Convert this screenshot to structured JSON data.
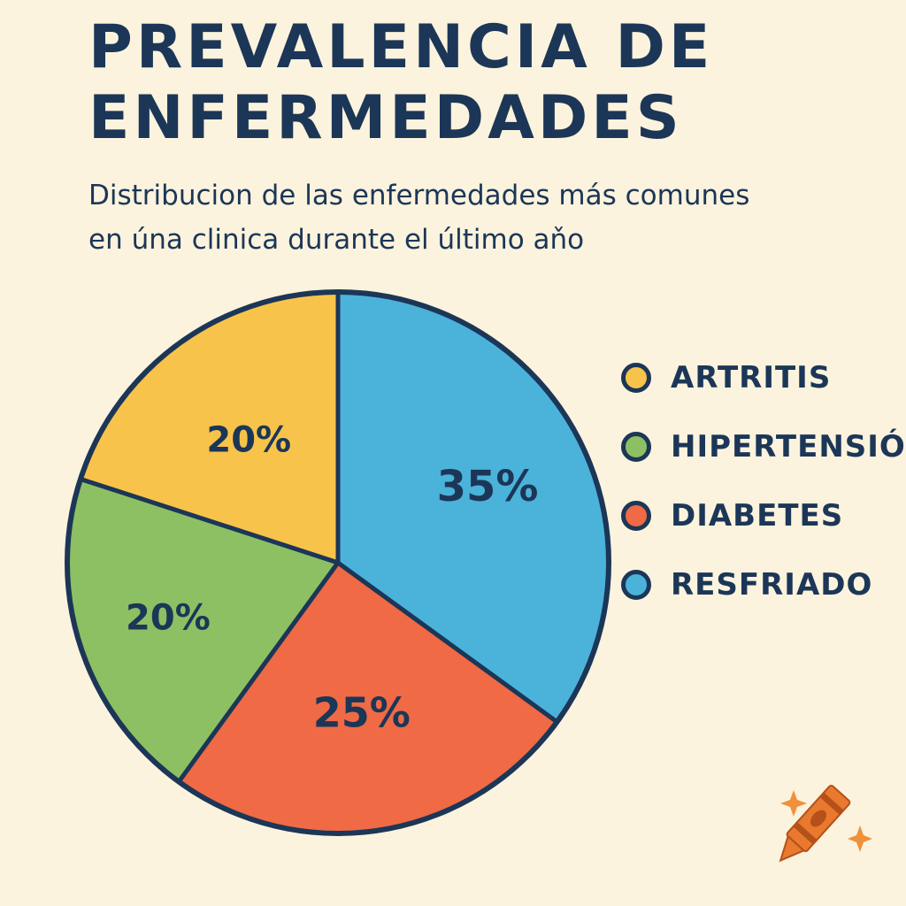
{
  "title_lines": [
    "PREVALENCIA DE",
    "ENFERMEDADES"
  ],
  "subtitle_lines": [
    "Distribucion de las enfermedades más comunes",
    "en úna clinica durante el último aňo"
  ],
  "chart_data": {
    "type": "pie",
    "title": "PREVALENCIA DE ENFERMEDADES",
    "subtitle": "Distribucion de las enfermedades más comunes en úna clinica durante el último aňo",
    "categories": [
      "ARTRITIS",
      "HIPERTENSIÓN",
      "DIABETES",
      "RESFRIADO"
    ],
    "values": [
      20,
      20,
      25,
      35
    ],
    "value_labels": [
      "20%",
      "20%",
      "25%",
      "35%"
    ],
    "colors": [
      "#f8c34a",
      "#8dc063",
      "#ef6a45",
      "#4bb3da"
    ],
    "outline_color": "#1c3657",
    "legend_position": "right"
  },
  "icons": [
    "crayon-icon",
    "sparkle-icon"
  ],
  "accent_colors": {
    "crayon": "#e8792e",
    "sparkle": "#f0903a"
  }
}
